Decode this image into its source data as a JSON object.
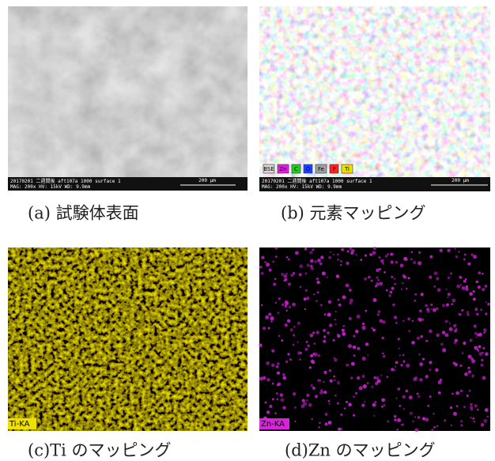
{
  "panels": [
    {
      "caption": "(a) 試験体表面",
      "info": [
        "20170201 二週間後 aft107a 1000 surface 1",
        "MAG: 200x HV: 15kV WD: 9.9mm"
      ],
      "scale": "200 μm"
    },
    {
      "caption": "(b) 元素マッピング",
      "info": [
        "20170201 二週間後 aft107a 1000 surface 1",
        "MAG: 200x HV: 15kV WD: 9.9mm"
      ],
      "scale": "200 μm",
      "legend": [
        {
          "label": "BSE",
          "color": "#d8d8d8"
        },
        {
          "label": "Zn",
          "color": "#e020e0"
        },
        {
          "label": "C",
          "color": "#20d020"
        },
        {
          "label": "O",
          "color": "#2040ff"
        },
        {
          "label": "Fe",
          "color": "#a0a0a0"
        },
        {
          "label": "P",
          "color": "#ff2020"
        },
        {
          "label": "Ti",
          "color": "#f0e000"
        }
      ]
    },
    {
      "caption": "(c)Ti のマッピング",
      "tag": "Ti-KA"
    },
    {
      "caption": "(d)Zn のマッピング",
      "tag": "Zn-KA"
    }
  ]
}
